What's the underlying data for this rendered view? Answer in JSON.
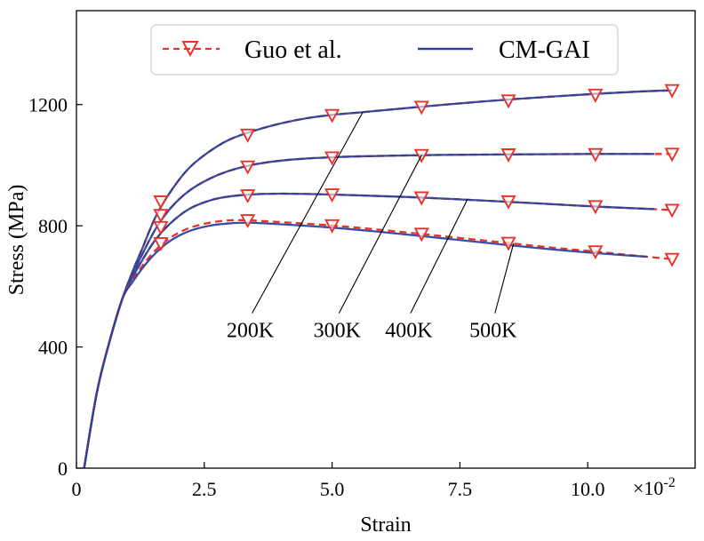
{
  "chart_data": {
    "type": "line",
    "xlabel": "Strain",
    "ylabel": "Stress (MPa)",
    "x_multiplier_label": "×10",
    "x_multiplier_exp": "-2",
    "xlim": [
      0,
      0.121
    ],
    "ylim": [
      0,
      1510
    ],
    "x_ticks": [
      0,
      0.025,
      0.05,
      0.075,
      0.1
    ],
    "x_tick_labels": [
      "0",
      "2.5",
      "5.0",
      "7.5",
      "10.0"
    ],
    "y_ticks": [
      0,
      400,
      800,
      1200
    ],
    "y_tick_labels": [
      "0",
      "400",
      "800",
      "1200"
    ],
    "grid": false,
    "legend": {
      "position": "top-center",
      "entries": [
        {
          "label": "Guo et al.",
          "color": "#e8332b",
          "style": "dashed",
          "marker": "triangle-down"
        },
        {
          "label": "CM-GAI",
          "color": "#2c3f99",
          "style": "solid",
          "marker": "none"
        }
      ]
    },
    "colors": {
      "guo": "#e8332b",
      "cmgai": "#2c3f99"
    },
    "series": [
      {
        "temperature": "200K",
        "guo": {
          "x": [
            0.0015,
            0.004,
            0.0065,
            0.009,
            0.011,
            0.013,
            0.0155,
            0.0185,
            0.022,
            0.026,
            0.03,
            0.035,
            0.04,
            0.045,
            0.05,
            0.056,
            0.0675,
            0.08,
            0.09,
            0.101,
            0.11,
            0.1165
          ],
          "y": [
            0,
            250,
            420,
            560,
            650,
            730,
            830,
            915,
            990,
            1045,
            1085,
            1115,
            1138,
            1155,
            1166,
            1175,
            1193,
            1211,
            1223,
            1235,
            1243,
            1247
          ]
        },
        "guo_markers": {
          "x": [
            0.0165,
            0.0335,
            0.05,
            0.0675,
            0.0845,
            0.1015,
            0.1165
          ],
          "y": [
            880,
            1100,
            1165,
            1192,
            1213,
            1232,
            1247
          ]
        },
        "cmgai": {
          "x": [
            0.0015,
            0.004,
            0.0065,
            0.009,
            0.011,
            0.013,
            0.0155,
            0.0185,
            0.022,
            0.026,
            0.03,
            0.035,
            0.04,
            0.045,
            0.05,
            0.056,
            0.0675,
            0.08,
            0.09,
            0.101,
            0.11,
            0.1165
          ],
          "y": [
            0,
            250,
            420,
            560,
            650,
            730,
            830,
            915,
            990,
            1045,
            1085,
            1115,
            1138,
            1155,
            1166,
            1175,
            1193,
            1211,
            1223,
            1235,
            1243,
            1247
          ]
        },
        "label_position": {
          "x": 0.034,
          "y": 520
        },
        "leader_to": {
          "x": 0.056,
          "y": 1175
        }
      },
      {
        "temperature": "300K",
        "guo": {
          "x": [
            0.0015,
            0.004,
            0.0065,
            0.009,
            0.011,
            0.013,
            0.0155,
            0.0185,
            0.022,
            0.026,
            0.03,
            0.035,
            0.04,
            0.045,
            0.05,
            0.055,
            0.0675,
            0.08,
            0.09,
            0.1015,
            0.11,
            0.1165
          ],
          "y": [
            0,
            250,
            420,
            560,
            640,
            710,
            790,
            860,
            915,
            955,
            982,
            1003,
            1015,
            1022,
            1026,
            1029,
            1033,
            1035,
            1036,
            1037,
            1037,
            1037
          ]
        },
        "guo_markers": {
          "x": [
            0.0165,
            0.0335,
            0.05,
            0.0675,
            0.0845,
            0.1015,
            0.1165
          ],
          "y": [
            835,
            995,
            1025,
            1033,
            1035,
            1036,
            1037
          ]
        },
        "cmgai": {
          "x": [
            0.0015,
            0.004,
            0.0065,
            0.009,
            0.011,
            0.013,
            0.0155,
            0.0185,
            0.022,
            0.026,
            0.03,
            0.035,
            0.04,
            0.045,
            0.05,
            0.055,
            0.0675,
            0.08,
            0.09,
            0.1015,
            0.11,
            0.113
          ],
          "y": [
            0,
            250,
            420,
            560,
            640,
            710,
            790,
            860,
            915,
            955,
            982,
            1003,
            1015,
            1022,
            1026,
            1029,
            1033,
            1035,
            1036,
            1037,
            1037,
            1037
          ]
        },
        "label_position": {
          "x": 0.051,
          "y": 520
        },
        "leader_to": {
          "x": 0.0675,
          "y": 1033
        }
      },
      {
        "temperature": "400K",
        "guo": {
          "x": [
            0.0015,
            0.004,
            0.0065,
            0.009,
            0.011,
            0.013,
            0.0155,
            0.0185,
            0.022,
            0.026,
            0.03,
            0.035,
            0.04,
            0.045,
            0.05,
            0.056,
            0.0675,
            0.08,
            0.09,
            0.101,
            0.11,
            0.1165
          ],
          "y": [
            0,
            250,
            420,
            560,
            630,
            690,
            755,
            810,
            855,
            883,
            897,
            904,
            906,
            905,
            903,
            900,
            893,
            883,
            874,
            864,
            857,
            852
          ]
        },
        "guo_markers": {
          "x": [
            0.0165,
            0.0335,
            0.05,
            0.0675,
            0.0845,
            0.1015,
            0.1165
          ],
          "y": [
            795,
            900,
            903,
            893,
            880,
            864,
            852
          ]
        },
        "cmgai": {
          "x": [
            0.0015,
            0.004,
            0.0065,
            0.009,
            0.011,
            0.013,
            0.0155,
            0.0185,
            0.022,
            0.026,
            0.03,
            0.035,
            0.04,
            0.045,
            0.05,
            0.056,
            0.0675,
            0.08,
            0.09,
            0.101,
            0.11,
            0.113
          ],
          "y": [
            0,
            250,
            420,
            560,
            630,
            690,
            755,
            810,
            855,
            883,
            897,
            904,
            906,
            905,
            903,
            900,
            893,
            883,
            874,
            864,
            857,
            855
          ]
        },
        "label_position": {
          "x": 0.065,
          "y": 520
        },
        "leader_to": {
          "x": 0.0765,
          "y": 888
        }
      },
      {
        "temperature": "500K",
        "guo": {
          "x": [
            0.0015,
            0.004,
            0.0065,
            0.009,
            0.011,
            0.013,
            0.0155,
            0.0185,
            0.022,
            0.026,
            0.03,
            0.0335,
            0.037,
            0.042,
            0.05,
            0.058,
            0.0675,
            0.076,
            0.0845,
            0.093,
            0.1015,
            0.109,
            0.1165
          ],
          "y": [
            0,
            250,
            420,
            560,
            620,
            670,
            720,
            762,
            792,
            810,
            818,
            818,
            815,
            810,
            801,
            789,
            773,
            758,
            743,
            728,
            715,
            702,
            690
          ]
        },
        "guo_markers": {
          "x": [
            0.0165,
            0.0335,
            0.05,
            0.0675,
            0.0845,
            0.1015,
            0.1165
          ],
          "y": [
            742,
            818,
            801,
            773,
            743,
            715,
            690
          ]
        },
        "cmgai": {
          "x": [
            0.0015,
            0.004,
            0.0065,
            0.009,
            0.011,
            0.013,
            0.0155,
            0.0185,
            0.022,
            0.026,
            0.03,
            0.0335,
            0.037,
            0.042,
            0.05,
            0.058,
            0.0675,
            0.076,
            0.0845,
            0.093,
            0.1015,
            0.107,
            0.1115
          ],
          "y": [
            0,
            250,
            420,
            560,
            615,
            662,
            710,
            752,
            782,
            800,
            808,
            810,
            808,
            803,
            794,
            782,
            766,
            751,
            736,
            722,
            710,
            703,
            698
          ]
        },
        "label_position": {
          "x": 0.0815,
          "y": 520
        },
        "leader_to": {
          "x": 0.0855,
          "y": 742
        }
      }
    ]
  }
}
